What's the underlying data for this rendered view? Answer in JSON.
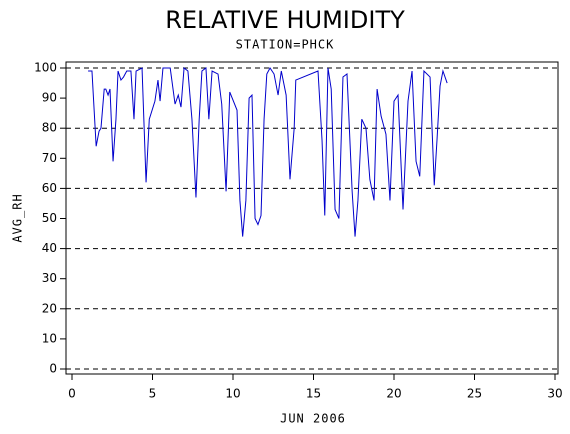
{
  "chart_data": {
    "type": "line",
    "title": "RELATIVE HUMIDITY",
    "subtitle": "STATION=PHCK",
    "xlabel": "JUN 2006",
    "ylabel": "AVG_RH",
    "xlim": [
      0,
      30
    ],
    "xticks": [
      0,
      5,
      10,
      15,
      20,
      25,
      30
    ],
    "ylim": [
      0,
      100
    ],
    "yticks": [
      0,
      10,
      20,
      30,
      40,
      50,
      60,
      70,
      80,
      90,
      100
    ],
    "grid_lines": [
      0,
      20,
      40,
      60,
      80,
      100
    ],
    "series": [
      {
        "color": "#0000cc",
        "x": [
          1.0,
          1.24,
          1.5,
          1.68,
          1.8,
          2.0,
          2.1,
          2.24,
          2.36,
          2.55,
          2.73,
          2.86,
          3.04,
          3.2,
          3.4,
          3.66,
          3.85,
          3.98,
          4.35,
          4.6,
          4.8,
          5.15,
          5.34,
          5.47,
          5.65,
          5.84,
          6.1,
          6.4,
          6.6,
          6.77,
          6.96,
          7.2,
          7.45,
          7.7,
          7.9,
          8.07,
          8.32,
          8.5,
          8.7,
          9.07,
          9.3,
          9.57,
          9.8,
          10.25,
          10.43,
          10.6,
          10.8,
          11.0,
          11.18,
          11.37,
          11.55,
          11.74,
          11.93,
          12.1,
          12.3,
          12.55,
          12.8,
          13.0,
          13.3,
          13.54,
          13.8,
          13.9,
          15.28,
          15.53,
          15.7,
          15.9,
          16.1,
          16.34,
          16.58,
          16.83,
          17.08,
          17.4,
          17.58,
          17.76,
          18.0,
          18.26,
          18.5,
          18.76,
          18.95,
          19.2,
          19.5,
          19.75,
          20.0,
          20.25,
          20.56,
          20.87,
          21.12,
          21.37,
          21.6,
          21.86,
          22.24,
          22.5,
          22.67,
          22.86,
          23.04,
          23.3
        ],
        "values": [
          99,
          99,
          74,
          79,
          80,
          93,
          93,
          91,
          93,
          69,
          83,
          99,
          96,
          97,
          99,
          99,
          83,
          99,
          100,
          62,
          83,
          89,
          96,
          89,
          100,
          100,
          100,
          88,
          91,
          87,
          100,
          99,
          83,
          57,
          83,
          99,
          100,
          83,
          99,
          98,
          88,
          59,
          92,
          86,
          56,
          44,
          56,
          90,
          91,
          50,
          48,
          51,
          83,
          98,
          100,
          98,
          91,
          99,
          91,
          63,
          80,
          96,
          99,
          76,
          51,
          100,
          93,
          53,
          50,
          97,
          98,
          59,
          44,
          56,
          83,
          80,
          63,
          56,
          93,
          84,
          78,
          56,
          89,
          91,
          53,
          89,
          99,
          69,
          64,
          99,
          97,
          61,
          76,
          94,
          99,
          95
        ]
      }
    ]
  }
}
